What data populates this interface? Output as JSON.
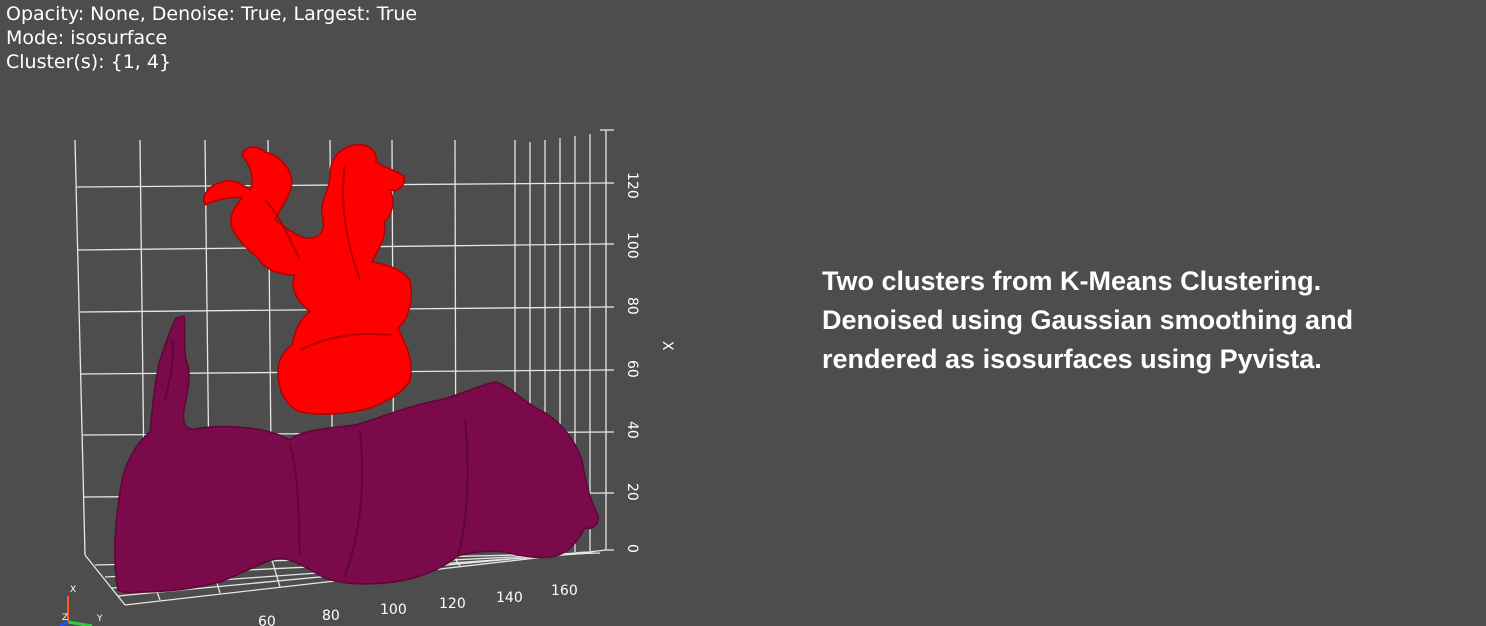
{
  "hud": {
    "line1": "Opacity: None, Denoise: True, Largest: True",
    "line2": "Mode: isosurface",
    "line3": "Cluster(s): {1, 4}"
  },
  "caption": {
    "line1": "Two clusters from K-Means Clustering.",
    "line2": "Denoised using Gaussian smoothing and",
    "line3": "rendered as isosurfaces using Pyvista."
  },
  "scene": {
    "background": "#4d4d4d",
    "cluster_colors": [
      "#ff0000",
      "#7a0a4a"
    ],
    "axis_x_title": "X",
    "axis_vertical_ticks": [
      "0",
      "20",
      "40",
      "60",
      "80",
      "100",
      "120"
    ],
    "axis_bottom_ticks": [
      "60",
      "80",
      "100",
      "120",
      "140",
      "160"
    ],
    "orientation_labels": [
      "X",
      "Y",
      "Z"
    ]
  }
}
